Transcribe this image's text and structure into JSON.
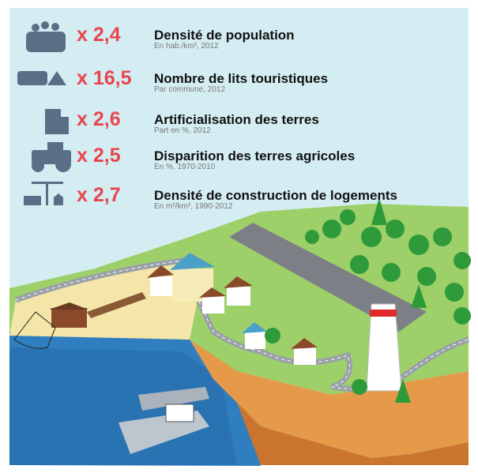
{
  "items": [
    {
      "value": "x 2,4",
      "title": "Densité de population",
      "subtitle": "En hab./km², 2012"
    },
    {
      "value": "x 16,5",
      "title": "Nombre de lits touristiques",
      "subtitle": "Par commune, 2012"
    },
    {
      "value": "x 2,6",
      "title": "Artificialisation des terres",
      "subtitle": "Part en %, 2012"
    },
    {
      "value": "x 2,5",
      "title": "Disparition des terres agricoles",
      "subtitle": "En %, 1970-2010"
    },
    {
      "value": "x 2,7",
      "title": "Densité de construction de logements",
      "subtitle": "En m²/km², 1990-2012"
    }
  ]
}
